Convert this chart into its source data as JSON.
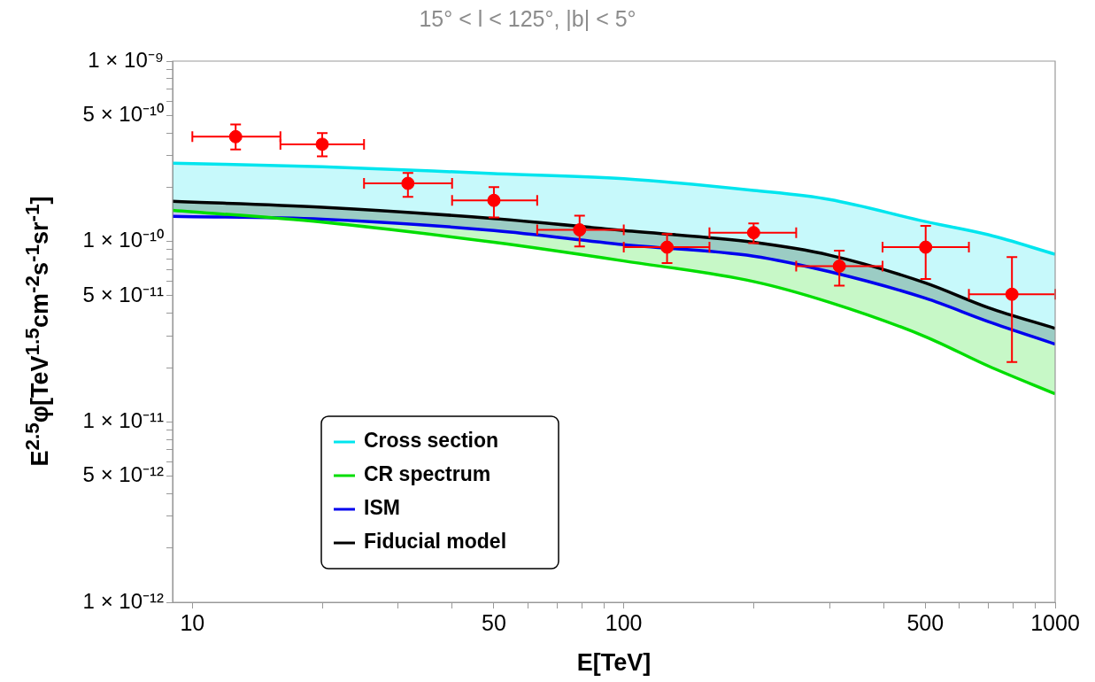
{
  "chart_data": {
    "type": "line",
    "title": "15° < l < 125°, |b| < 5°",
    "xlabel": "E[TeV]",
    "ylabel": "E$^{2.5}$φ[TeV$^{1.5}$cm$^{-2}$s$^{-1}$sr$^{-1}$]",
    "log": "xy",
    "xlim": [
      9,
      1000
    ],
    "ylim": [
      1e-12,
      1e-09
    ],
    "xticks": [
      10,
      {
        "value": 20,
        "label": null
      },
      {
        "value": 30,
        "label": null
      },
      {
        "value": 40,
        "label": null
      },
      50,
      {
        "value": 60,
        "label": null
      },
      {
        "value": 70,
        "label": null
      },
      {
        "value": 80,
        "label": null
      },
      {
        "value": 90,
        "label": null
      },
      100,
      {
        "value": 200,
        "label": null
      },
      {
        "value": 300,
        "label": null
      },
      {
        "value": 400,
        "label": null
      },
      500,
      {
        "value": 600,
        "label": null
      },
      {
        "value": 700,
        "label": null
      },
      {
        "value": 800,
        "label": null
      },
      {
        "value": 900,
        "label": null
      },
      1000
    ],
    "yticks": [
      {
        "value": 1e-12,
        "label": "1 × 10⁻¹²"
      },
      {
        "value": 2e-12,
        "label": null
      },
      {
        "value": 3e-12,
        "label": null
      },
      {
        "value": 4e-12,
        "label": null
      },
      {
        "value": 5e-12,
        "label": "5 × 10⁻¹²"
      },
      {
        "value": 6e-12,
        "label": null
      },
      {
        "value": 7e-12,
        "label": null
      },
      {
        "value": 8e-12,
        "label": null
      },
      {
        "value": 9e-12,
        "label": null
      },
      {
        "value": 1e-11,
        "label": "1 × 10⁻¹¹"
      },
      {
        "value": 2e-11,
        "label": null
      },
      {
        "value": 3e-11,
        "label": null
      },
      {
        "value": 4e-11,
        "label": null
      },
      {
        "value": 5e-11,
        "label": "5 × 10⁻¹¹"
      },
      {
        "value": 6e-11,
        "label": null
      },
      {
        "value": 7e-11,
        "label": null
      },
      {
        "value": 8e-11,
        "label": null
      },
      {
        "value": 9e-11,
        "label": null
      },
      {
        "value": 1e-10,
        "label": "1 × 10⁻¹⁰"
      },
      {
        "value": 2e-10,
        "label": null
      },
      {
        "value": 3e-10,
        "label": null
      },
      {
        "value": 4e-10,
        "label": null
      },
      {
        "value": 5e-10,
        "label": "5 × 10⁻¹⁰"
      },
      {
        "value": 6e-10,
        "label": null
      },
      {
        "value": 7e-10,
        "label": null
      },
      {
        "value": 8e-10,
        "label": null
      },
      {
        "value": 9e-10,
        "label": null
      },
      {
        "value": 1e-09,
        "label": "1 × 10⁻⁹"
      }
    ],
    "grid": false,
    "legend": "bottom left",
    "marker": "none",
    "line_style": "solid",
    "series": [
      {
        "name": "Cross section",
        "color": "#00e5ee",
        "x": [
          9,
          20,
          50,
          100,
          200,
          300,
          500,
          700,
          1000
        ],
        "values": [
          2.72e-10,
          2.6e-10,
          2.38e-10,
          2.23e-10,
          1.92e-10,
          1.71e-10,
          1.29e-10,
          1.09e-10,
          8.5e-11
        ],
        "lower": [
          1.67e-10,
          1.55e-10,
          1.34e-10,
          1.15e-10,
          9.9e-11,
          8.4e-11,
          5.9e-11,
          4.3e-11,
          3.3e-11
        ],
        "upper": [
          2.72e-10,
          2.6e-10,
          2.38e-10,
          2.23e-10,
          1.92e-10,
          1.71e-10,
          1.29e-10,
          1.09e-10,
          8.5e-11
        ]
      },
      {
        "name": "CR spectrum",
        "color": "#00dd00",
        "x": [
          9,
          20,
          50,
          100,
          200,
          300,
          500,
          700,
          1000
        ],
        "values": [
          1.49e-10,
          1.28e-10,
          9.9e-11,
          7.8e-11,
          6e-11,
          4.6e-11,
          2.97e-11,
          2.04e-11,
          1.43e-11
        ],
        "lower": [
          1.49e-10,
          1.28e-10,
          9.9e-11,
          7.8e-11,
          6e-11,
          4.6e-11,
          2.97e-11,
          2.04e-11,
          1.43e-11
        ],
        "upper": [
          1.67e-10,
          1.55e-10,
          1.34e-10,
          1.15e-10,
          9.9e-11,
          8.4e-11,
          5.9e-11,
          4.3e-11,
          3.3e-11
        ]
      },
      {
        "name": "ISM",
        "color": "#0000ee",
        "x": [
          9,
          20,
          50,
          100,
          200,
          300,
          500,
          700,
          1000
        ],
        "values": [
          1.38e-10,
          1.33e-10,
          1.15e-10,
          9.6e-11,
          8.3e-11,
          6.8e-11,
          4.85e-11,
          3.6e-11,
          2.7e-11
        ],
        "lower": [
          1.38e-10,
          1.33e-10,
          1.15e-10,
          9.6e-11,
          8.3e-11,
          6.8e-11,
          4.85e-11,
          3.6e-11,
          2.7e-11
        ],
        "upper": [
          1.67e-10,
          1.55e-10,
          1.34e-10,
          1.15e-10,
          9.9e-11,
          8.4e-11,
          5.9e-11,
          4.3e-11,
          3.3e-11
        ]
      },
      {
        "name": "Fiducial model",
        "color": "#000000",
        "x": [
          9,
          20,
          50,
          100,
          200,
          300,
          500,
          700,
          1000
        ],
        "values": [
          1.67e-10,
          1.55e-10,
          1.34e-10,
          1.15e-10,
          9.9e-11,
          8.4e-11,
          5.9e-11,
          4.3e-11,
          3.3e-11
        ]
      },
      {
        "type": "scatter",
        "color": "#ff0000",
        "marker": "circle",
        "x": [
          12.6,
          20,
          31.6,
          50,
          79,
          126,
          200,
          316,
          501,
          794
        ],
        "values": [
          3.81e-10,
          3.46e-10,
          2.1e-10,
          1.69e-10,
          1.16e-10,
          9.3e-11,
          1.12e-10,
          7.3e-11,
          9.3e-11,
          5.1e-11
        ],
        "errors": [
          [
            3.24e-10,
            4.45e-10
          ],
          [
            2.97e-10,
            3.99e-10
          ],
          [
            1.77e-10,
            2.4e-10
          ],
          [
            1.36e-10,
            2e-10
          ],
          [
            9.4e-11,
            1.39e-10
          ],
          [
            7.6e-11,
            1.1e-10
          ],
          [
            9.8e-11,
            1.26e-10
          ],
          [
            5.7e-11,
            8.9e-11
          ],
          [
            6.2e-11,
            1.22e-10
          ],
          [
            2.15e-11,
            8.2e-11
          ]
        ],
        "xerrors": [
          [
            10,
            16
          ],
          [
            16,
            25
          ],
          [
            25,
            40
          ],
          [
            40,
            63
          ],
          [
            63,
            100
          ],
          [
            100,
            158
          ],
          [
            158,
            251
          ],
          [
            251,
            398
          ],
          [
            398,
            631
          ],
          [
            631,
            1000
          ]
        ]
      }
    ]
  }
}
